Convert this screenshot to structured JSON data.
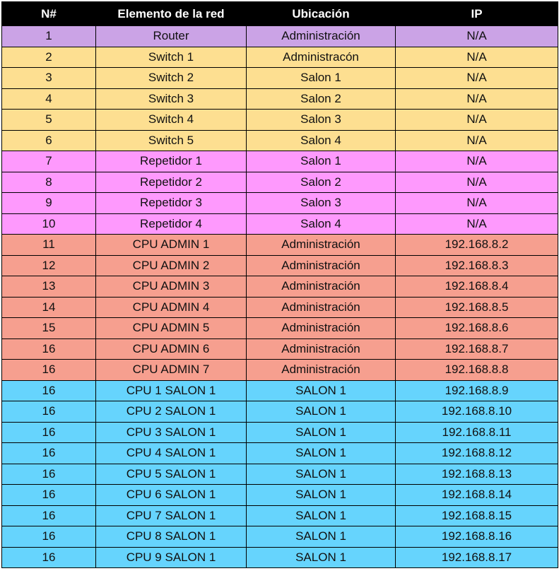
{
  "table": {
    "headers": [
      "N#",
      "Elemento de la red",
      "Ubicación",
      "IP"
    ],
    "colors": {
      "header_bg": "#000000",
      "header_fg": "#ffffff",
      "router": "#cba3e6",
      "switch": "#fddf91",
      "repetidor": "#fe99fd",
      "cpu_admin": "#f69f8f",
      "cpu_salon": "#66d4fd"
    },
    "rows": [
      {
        "n": "1",
        "elemento": "Router",
        "ubicacion": "Administración",
        "ip": "N/A",
        "group": "router"
      },
      {
        "n": "2",
        "elemento": "Switch 1",
        "ubicacion": "Administracón",
        "ip": "N/A",
        "group": "switch"
      },
      {
        "n": "3",
        "elemento": "Switch 2",
        "ubicacion": "Salon 1",
        "ip": "N/A",
        "group": "switch"
      },
      {
        "n": "4",
        "elemento": "Switch 3",
        "ubicacion": "Salon 2",
        "ip": "N/A",
        "group": "switch"
      },
      {
        "n": "5",
        "elemento": "Switch 4",
        "ubicacion": "Salon 3",
        "ip": "N/A",
        "group": "switch"
      },
      {
        "n": "6",
        "elemento": "Switch 5",
        "ubicacion": "Salon 4",
        "ip": "N/A",
        "group": "switch"
      },
      {
        "n": "7",
        "elemento": "Repetidor 1",
        "ubicacion": "Salon 1",
        "ip": "N/A",
        "group": "repetidor"
      },
      {
        "n": "8",
        "elemento": "Repetidor 2",
        "ubicacion": "Salon 2",
        "ip": "N/A",
        "group": "repetidor"
      },
      {
        "n": "9",
        "elemento": "Repetidor 3",
        "ubicacion": "Salon 3",
        "ip": "N/A",
        "group": "repetidor"
      },
      {
        "n": "10",
        "elemento": "Repetidor 4",
        "ubicacion": "Salon 4",
        "ip": "N/A",
        "group": "repetidor"
      },
      {
        "n": "11",
        "elemento": "CPU ADMIN 1",
        "ubicacion": "Administración",
        "ip": "192.168.8.2",
        "group": "cpu_admin"
      },
      {
        "n": "12",
        "elemento": "CPU ADMIN 2",
        "ubicacion": "Administración",
        "ip": "192.168.8.3",
        "group": "cpu_admin"
      },
      {
        "n": "13",
        "elemento": "CPU ADMIN 3",
        "ubicacion": "Administración",
        "ip": "192.168.8.4",
        "group": "cpu_admin"
      },
      {
        "n": "14",
        "elemento": "CPU ADMIN 4",
        "ubicacion": "Administración",
        "ip": "192.168.8.5",
        "group": "cpu_admin"
      },
      {
        "n": "15",
        "elemento": "CPU ADMIN 5",
        "ubicacion": "Administración",
        "ip": "192.168.8.6",
        "group": "cpu_admin"
      },
      {
        "n": "16",
        "elemento": "CPU ADMIN 6",
        "ubicacion": "Administración",
        "ip": "192.168.8.7",
        "group": "cpu_admin"
      },
      {
        "n": "16",
        "elemento": "CPU ADMIN 7",
        "ubicacion": "Administración",
        "ip": "192.168.8.8",
        "group": "cpu_admin"
      },
      {
        "n": "16",
        "elemento": "CPU 1 SALON 1",
        "ubicacion": "SALON 1",
        "ip": "192.168.8.9",
        "group": "cpu_salon"
      },
      {
        "n": "16",
        "elemento": "CPU 2 SALON 1",
        "ubicacion": "SALON 1",
        "ip": "192.168.8.10",
        "group": "cpu_salon"
      },
      {
        "n": "16",
        "elemento": "CPU 3 SALON 1",
        "ubicacion": "SALON 1",
        "ip": "192.168.8.11",
        "group": "cpu_salon"
      },
      {
        "n": "16",
        "elemento": "CPU 4 SALON 1",
        "ubicacion": "SALON 1",
        "ip": "192.168.8.12",
        "group": "cpu_salon"
      },
      {
        "n": "16",
        "elemento": "CPU 5 SALON 1",
        "ubicacion": "SALON 1",
        "ip": "192.168.8.13",
        "group": "cpu_salon"
      },
      {
        "n": "16",
        "elemento": "CPU 6 SALON 1",
        "ubicacion": "SALON 1",
        "ip": "192.168.8.14",
        "group": "cpu_salon"
      },
      {
        "n": "16",
        "elemento": "CPU 7 SALON 1",
        "ubicacion": "SALON 1",
        "ip": "192.168.8.15",
        "group": "cpu_salon"
      },
      {
        "n": "16",
        "elemento": "CPU 8 SALON 1",
        "ubicacion": "SALON 1",
        "ip": "192.168.8.16",
        "group": "cpu_salon"
      },
      {
        "n": "16",
        "elemento": "CPU 9 SALON 1",
        "ubicacion": "SALON 1",
        "ip": "192.168.8.17",
        "group": "cpu_salon"
      }
    ]
  }
}
